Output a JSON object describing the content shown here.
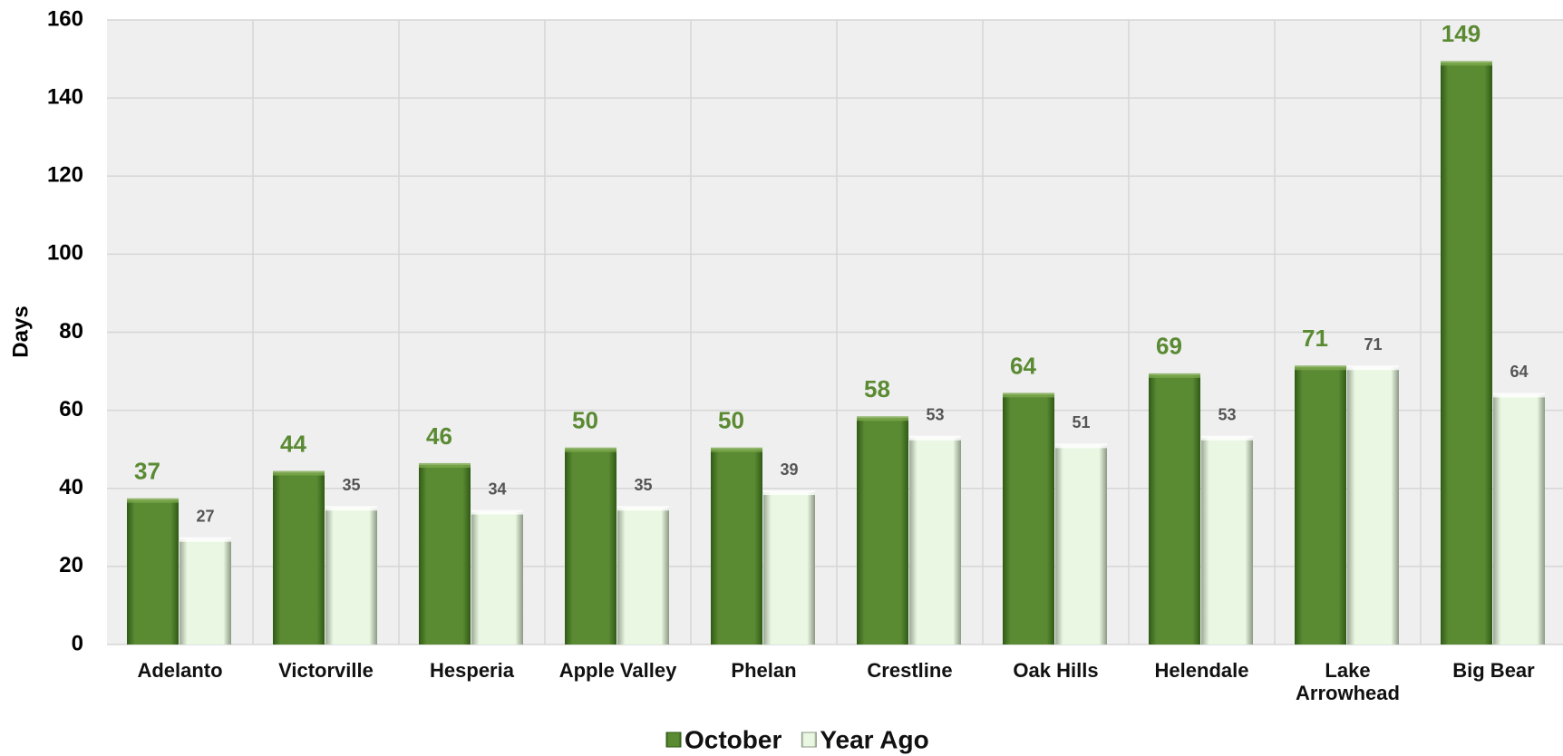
{
  "chart_data": {
    "type": "bar",
    "y_label": "Days",
    "categories": [
      "Adelanto",
      "Victorville",
      "Hesperia",
      "Apple Valley",
      "Phelan",
      "Crestline",
      "Oak Hills",
      "Helendale",
      "Lake Arrowhead",
      "Big Bear"
    ],
    "series": [
      {
        "name": "October",
        "color": "#5a8a32",
        "values": [
          37,
          44,
          46,
          50,
          50,
          58,
          64,
          69,
          71,
          149
        ]
      },
      {
        "name": "Year Ago",
        "color": "#eaf7e2",
        "values": [
          27,
          35,
          34,
          35,
          39,
          53,
          51,
          53,
          71,
          64
        ]
      }
    ],
    "ylim": [
      0,
      160
    ],
    "yticks": [
      0,
      20,
      40,
      60,
      80,
      100,
      120,
      140,
      160
    ],
    "grid": true,
    "legend": "bottom"
  }
}
